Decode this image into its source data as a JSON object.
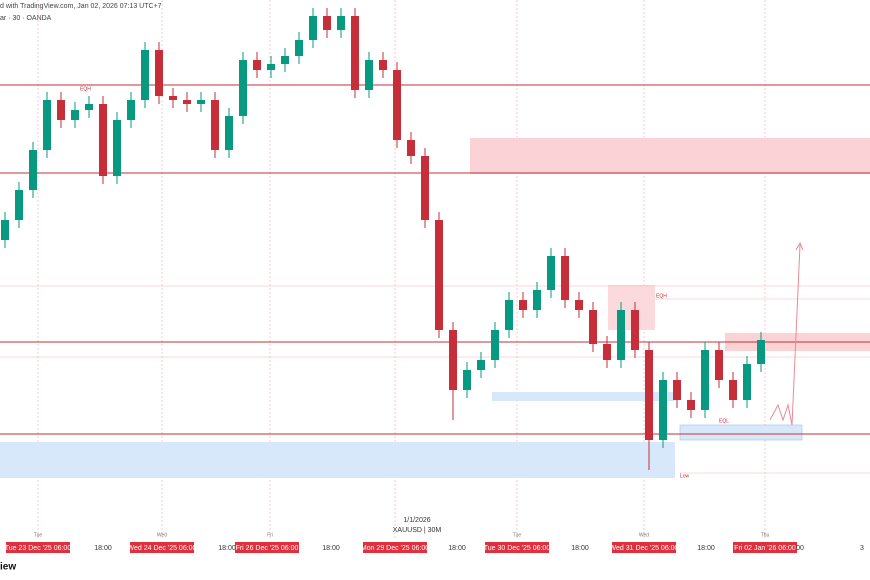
{
  "header": {
    "line1": "d with TradingView.com, Jan 02, 2026 07:13 UTC+7",
    "line2": "ar · 30 · OANDA"
  },
  "footer": "iew",
  "annotations": [
    "EQH",
    "EQH",
    "EQL",
    "Low",
    "1/1/2026",
    "XAUUSD | 30M"
  ],
  "chart_data": {
    "type": "candlestick",
    "open": [
      4440,
      4450,
      4465,
      4485,
      4510,
      4500,
      4505,
      4508,
      4472,
      4500,
      4510,
      4535,
      4512,
      4510,
      4508,
      4510,
      4485,
      4502,
      4530,
      4525,
      4528,
      4532,
      4540,
      4552,
      4545,
      4552,
      4515,
      4530,
      4525,
      4490,
      4482,
      4450,
      4395,
      4365,
      4375,
      4380,
      4395,
      4410,
      4405,
      4415,
      4432,
      4410,
      4405,
      4388,
      4380,
      4405,
      4385,
      4340,
      4370,
      4360,
      4355,
      4385,
      4370,
      4360,
      4378
    ],
    "high": [
      4454,
      4469,
      4489,
      4514,
      4514,
      4509,
      4512,
      4512,
      4504,
      4514,
      4539,
      4539,
      4516,
      4514,
      4514,
      4514,
      4506,
      4534,
      4534,
      4532,
      4536,
      4544,
      4556,
      4556,
      4556,
      4556,
      4534,
      4534,
      4529,
      4494,
      4486,
      4454,
      4399,
      4379,
      4384,
      4399,
      4414,
      4414,
      4419,
      4436,
      4436,
      4414,
      4409,
      4392,
      4409,
      4409,
      4389,
      4374,
      4374,
      4364,
      4389,
      4389,
      4374,
      4382,
      4394
    ],
    "low": [
      4436,
      4446,
      4461,
      4481,
      4496,
      4496,
      4501,
      4468,
      4468,
      4496,
      4506,
      4508,
      4506,
      4504,
      4504,
      4481,
      4481,
      4498,
      4521,
      4521,
      4524,
      4528,
      4536,
      4541,
      4541,
      4511,
      4511,
      4521,
      4486,
      4478,
      4446,
      4391,
      4350,
      4361,
      4371,
      4376,
      4391,
      4401,
      4401,
      4411,
      4406,
      4401,
      4384,
      4376,
      4376,
      4381,
      4325,
      4336,
      4356,
      4351,
      4351,
      4366,
      4356,
      4356,
      4374
    ],
    "close": [
      4450,
      4465,
      4485,
      4510,
      4500,
      4505,
      4508,
      4472,
      4500,
      4510,
      4535,
      4512,
      4510,
      4508,
      4510,
      4485,
      4502,
      4530,
      4525,
      4528,
      4532,
      4540,
      4552,
      4545,
      4552,
      4515,
      4530,
      4525,
      4490,
      4482,
      4450,
      4395,
      4365,
      4375,
      4380,
      4395,
      4410,
      4405,
      4415,
      4432,
      4410,
      4405,
      4388,
      4380,
      4405,
      4385,
      4340,
      4370,
      4360,
      4355,
      4385,
      4370,
      4360,
      4378,
      4390
    ],
    "up_color": "#089981",
    "down_color": "#c62f3a",
    "ylim": [
      4300,
      4560
    ],
    "day_labels": [
      "Tue",
      "Wed",
      "Fri",
      "Tue",
      "Wed",
      "Thu"
    ],
    "x_labels": [
      "Tue 23 Dec '25  06:00",
      "18:00",
      "Wed 24 Dec '25  06:00",
      "18:00",
      "Fri 26 Dec '25  06:00",
      "18:00",
      "Mon 29 Dec '25  06:00",
      "18:00",
      "Tue 30 Dec '25  06:00",
      "18:00",
      "Wed 31 Dec '25  06:00",
      "18:00",
      "Fri 02 Jan '26  06:00",
      "00",
      "3"
    ]
  }
}
